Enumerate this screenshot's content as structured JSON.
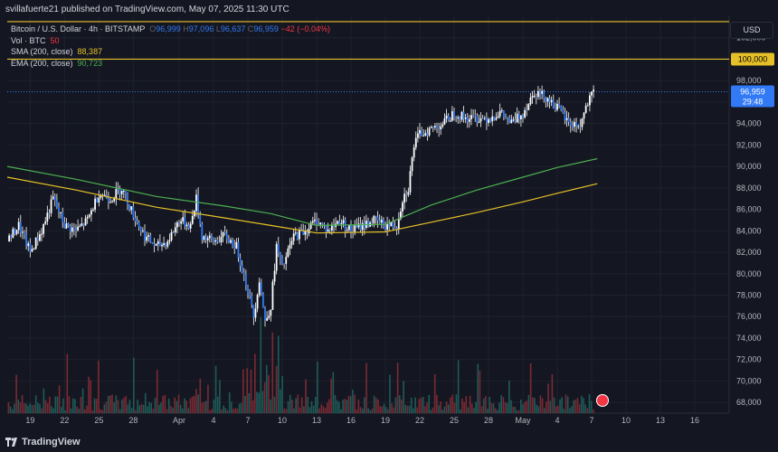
{
  "header": {
    "published": "svillafuerte21 published on TradingView.com, May 07, 2025 11:30 UTC"
  },
  "legend": {
    "symbol": "Bitcoin / U.S. Dollar · 4h · BITSTAMP",
    "o_label": "O",
    "o": "96,999",
    "h_label": "H",
    "h": "97,096",
    "l_label": "L",
    "l": "96,637",
    "c_label": "C",
    "c": "96,959",
    "change": "−42 (−0.04%)",
    "vol_label": "Vol · BTC",
    "vol": "50",
    "sma_label": "SMA (200, close)",
    "sma": "88,387",
    "ema_label": "EMA (200, close)",
    "ema": "90,723"
  },
  "currency": "USD",
  "footer": {
    "brand": "TradingView"
  },
  "colors": {
    "background": "#141721",
    "candle": "#3179f5",
    "wick": "#ffffff",
    "sma": "#e6c028",
    "ema": "#4caf50",
    "resistance": "#e6c028",
    "vol_down": "#7a2a34",
    "vol_up": "#1f5a58",
    "grid": "#1e222d",
    "axis_text": "#b2b5be"
  },
  "chart_data": {
    "type": "line",
    "y_ticks": [
      68000,
      70000,
      72000,
      74000,
      76000,
      78000,
      80000,
      82000,
      84000,
      86000,
      88000,
      90000,
      92000,
      94000,
      96000,
      98000,
      102000
    ],
    "ylim": [
      67000,
      104000
    ],
    "x_ticks": [
      {
        "label": "19",
        "day": 19
      },
      {
        "label": "22",
        "day": 22
      },
      {
        "label": "25",
        "day": 25
      },
      {
        "label": "28",
        "day": 28
      },
      {
        "label": "Apr",
        "day": 32
      },
      {
        "label": "4",
        "day": 35
      },
      {
        "label": "7",
        "day": 38
      },
      {
        "label": "10",
        "day": 41
      },
      {
        "label": "13",
        "day": 44
      },
      {
        "label": "16",
        "day": 47
      },
      {
        "label": "19",
        "day": 50
      },
      {
        "label": "22",
        "day": 53
      },
      {
        "label": "25",
        "day": 56
      },
      {
        "label": "28",
        "day": 59
      },
      {
        "label": "May",
        "day": 62
      },
      {
        "label": "4",
        "day": 65
      },
      {
        "label": "7",
        "day": 68
      },
      {
        "label": "10",
        "day": 71
      },
      {
        "label": "13",
        "day": 74
      },
      {
        "label": "16",
        "day": 77
      }
    ],
    "xlim": [
      17,
      80
    ],
    "price_path": [
      [
        17.0,
        83000
      ],
      [
        18.0,
        84500
      ],
      [
        19.0,
        82000
      ],
      [
        20.0,
        84000
      ],
      [
        21.0,
        87000
      ],
      [
        22.0,
        84500
      ],
      [
        23.0,
        84000
      ],
      [
        24.0,
        85000
      ],
      [
        25.0,
        87500
      ],
      [
        26.0,
        87000
      ],
      [
        27.0,
        88000
      ],
      [
        28.0,
        85500
      ],
      [
        29.0,
        83500
      ],
      [
        30.0,
        82500
      ],
      [
        31.0,
        83000
      ],
      [
        32.0,
        85000
      ],
      [
        33.0,
        84500
      ],
      [
        33.5,
        87000
      ],
      [
        34.0,
        83500
      ],
      [
        35.0,
        83000
      ],
      [
        36.0,
        83500
      ],
      [
        37.0,
        82500
      ],
      [
        38.0,
        78500
      ],
      [
        38.5,
        76000
      ],
      [
        39.0,
        79500
      ],
      [
        39.5,
        75500
      ],
      [
        40.0,
        77000
      ],
      [
        40.5,
        82500
      ],
      [
        41.0,
        80500
      ],
      [
        42.0,
        83500
      ],
      [
        43.0,
        84000
      ],
      [
        44.0,
        85000
      ],
      [
        45.0,
        84000
      ],
      [
        46.0,
        85000
      ],
      [
        47.0,
        84000
      ],
      [
        48.0,
        84500
      ],
      [
        49.0,
        85000
      ],
      [
        50.0,
        84500
      ],
      [
        51.0,
        84500
      ],
      [
        51.5,
        87000
      ],
      [
        52.0,
        88000
      ],
      [
        52.5,
        92000
      ],
      [
        53.0,
        93000
      ],
      [
        54.0,
        93500
      ],
      [
        55.0,
        94000
      ],
      [
        56.0,
        95000
      ],
      [
        57.0,
        94500
      ],
      [
        58.0,
        94500
      ],
      [
        59.0,
        94500
      ],
      [
        60.0,
        95000
      ],
      [
        61.0,
        94000
      ],
      [
        62.0,
        95000
      ],
      [
        63.0,
        97000
      ],
      [
        64.0,
        96500
      ],
      [
        65.0,
        95500
      ],
      [
        66.0,
        94000
      ],
      [
        67.0,
        93800
      ],
      [
        67.5,
        95500
      ],
      [
        68.2,
        96959
      ]
    ],
    "sma_path": [
      [
        17,
        89000
      ],
      [
        23,
        87800
      ],
      [
        30,
        86200
      ],
      [
        36,
        85200
      ],
      [
        40,
        84500
      ],
      [
        44,
        83800
      ],
      [
        50,
        83900
      ],
      [
        54,
        84800
      ],
      [
        58,
        85700
      ],
      [
        62,
        86700
      ],
      [
        65,
        87500
      ],
      [
        68.5,
        88387
      ]
    ],
    "ema_path": [
      [
        17,
        90000
      ],
      [
        23,
        88800
      ],
      [
        30,
        87200
      ],
      [
        36,
        86300
      ],
      [
        40,
        85600
      ],
      [
        44,
        84500
      ],
      [
        50,
        84600
      ],
      [
        54,
        86400
      ],
      [
        58,
        87800
      ],
      [
        62,
        89000
      ],
      [
        65,
        89900
      ],
      [
        68.5,
        90723
      ]
    ],
    "resistance_levels": [
      100000,
      103500
    ],
    "current_price": 96959,
    "last_price_label": "96,959",
    "countdown_label": "29:48",
    "resistance_label": "100,000"
  }
}
